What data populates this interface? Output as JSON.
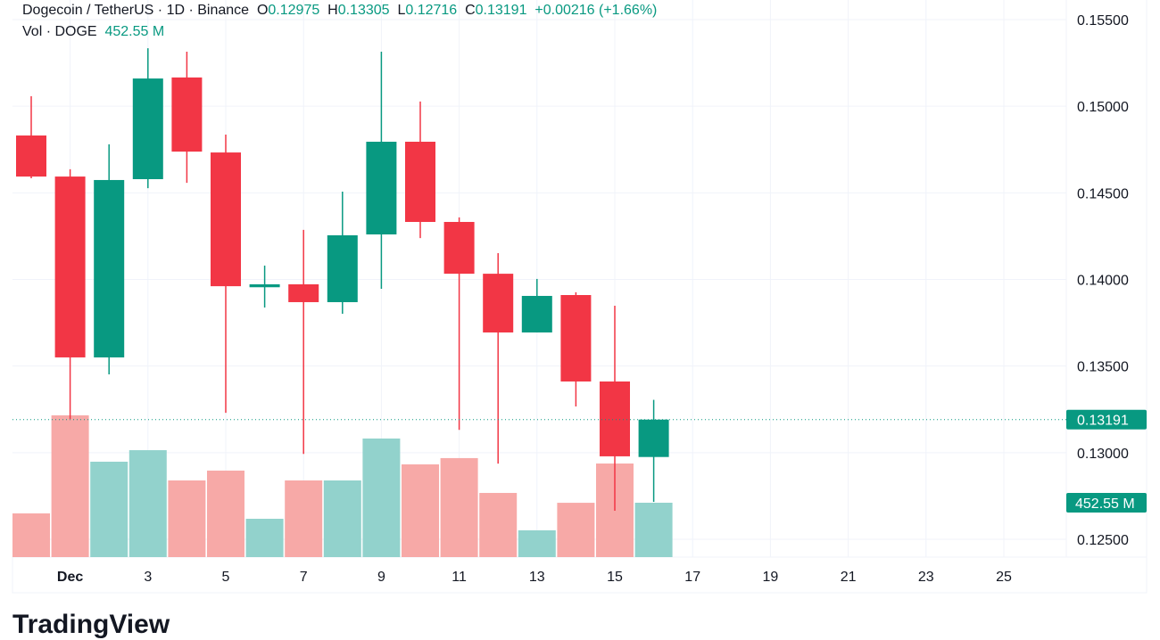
{
  "header": {
    "symbol": "Dogecoin / TetherUS · 1D · Binance",
    "o_label": "O",
    "o": "0.12975",
    "h_label": "H",
    "h": "0.13305",
    "l_label": "L",
    "l": "0.12716",
    "c_label": "C",
    "c": "0.13191",
    "change": "+0.00216 (+1.66%)",
    "vol_label": "Vol · DOGE",
    "vol": "452.55 M"
  },
  "logo": "TradingView",
  "colors": {
    "up": "#089981",
    "down": "#f23645",
    "vol_up": "#92d2cc",
    "vol_down": "#f7a9a7"
  },
  "chart_data": {
    "type": "candlestick",
    "ylim": [
      0.1235,
      0.156
    ],
    "y_ticks": [
      "0.15500",
      "0.15000",
      "0.14500",
      "0.14000",
      "0.13500",
      "0.13000",
      "0.12500"
    ],
    "x_ticks": [
      "Dec",
      "3",
      "5",
      "7",
      "9",
      "11",
      "13",
      "15",
      "17",
      "19",
      "21",
      "23",
      "25"
    ],
    "last_price_label": "0.13191",
    "last_volume_label": "452.55 M",
    "days": [
      "Nov 30",
      "Dec 1",
      "Dec 2",
      "Dec 3",
      "Dec 4",
      "Dec 5",
      "Dec 6",
      "Dec 7",
      "Dec 8",
      "Dec 9",
      "Dec 10",
      "Dec 11",
      "Dec 12",
      "Dec 13",
      "Dec 14",
      "Dec 15",
      "Dec 16"
    ],
    "open": [
      0.14831,
      0.14594,
      0.1355,
      0.14579,
      0.15166,
      0.14733,
      0.13955,
      0.13972,
      0.13869,
      0.1426,
      0.14795,
      0.14332,
      0.14033,
      0.13694,
      0.1391,
      0.13411,
      0.12975
    ],
    "high": [
      0.15058,
      0.14636,
      0.1478,
      0.15335,
      0.15315,
      0.14836,
      0.1408,
      0.14286,
      0.14507,
      0.15315,
      0.15027,
      0.14358,
      0.14152,
      0.14003,
      0.13926,
      0.13848,
      0.13305
    ],
    "low": [
      0.14584,
      0.13195,
      0.13452,
      0.14527,
      0.14558,
      0.1323,
      0.13838,
      0.12993,
      0.13802,
      0.13946,
      0.14239,
      0.13132,
      0.12937,
      0.13694,
      0.13267,
      0.12665,
      0.12716
    ],
    "close": [
      0.14594,
      0.1355,
      0.14574,
      0.1516,
      0.14738,
      0.13961,
      0.13972,
      0.13869,
      0.14255,
      0.14795,
      0.14332,
      0.14033,
      0.13694,
      0.13905,
      0.13411,
      0.12979,
      0.13191
    ],
    "volume_M": [
      364,
      1180,
      794,
      890,
      638,
      720,
      319,
      638,
      638,
      987,
      772,
      824,
      534,
      223,
      452,
      779,
      452.55
    ]
  }
}
